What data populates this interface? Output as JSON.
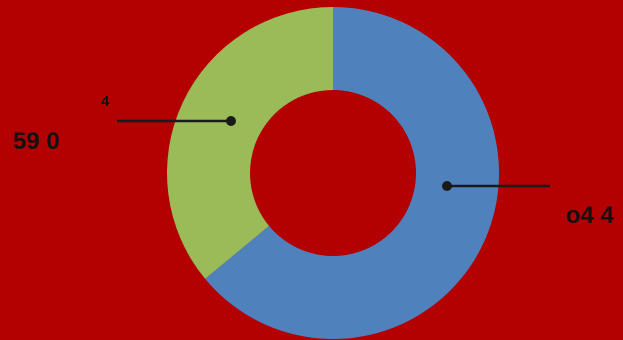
{
  "colors": {
    "background": "#b30000",
    "slice_blue": "#4f81bd",
    "slice_green": "#9bbb59",
    "leader": "#1a1a1a"
  },
  "chart_data": {
    "type": "pie",
    "donut": true,
    "title": "",
    "slices": [
      {
        "value": 64.0,
        "color": "#4f81bd"
      },
      {
        "value": 36.0,
        "color": "#9bbb59"
      }
    ],
    "labels": {
      "small": "4",
      "left": "59 0",
      "right": "o4 4"
    },
    "legend": "none"
  }
}
